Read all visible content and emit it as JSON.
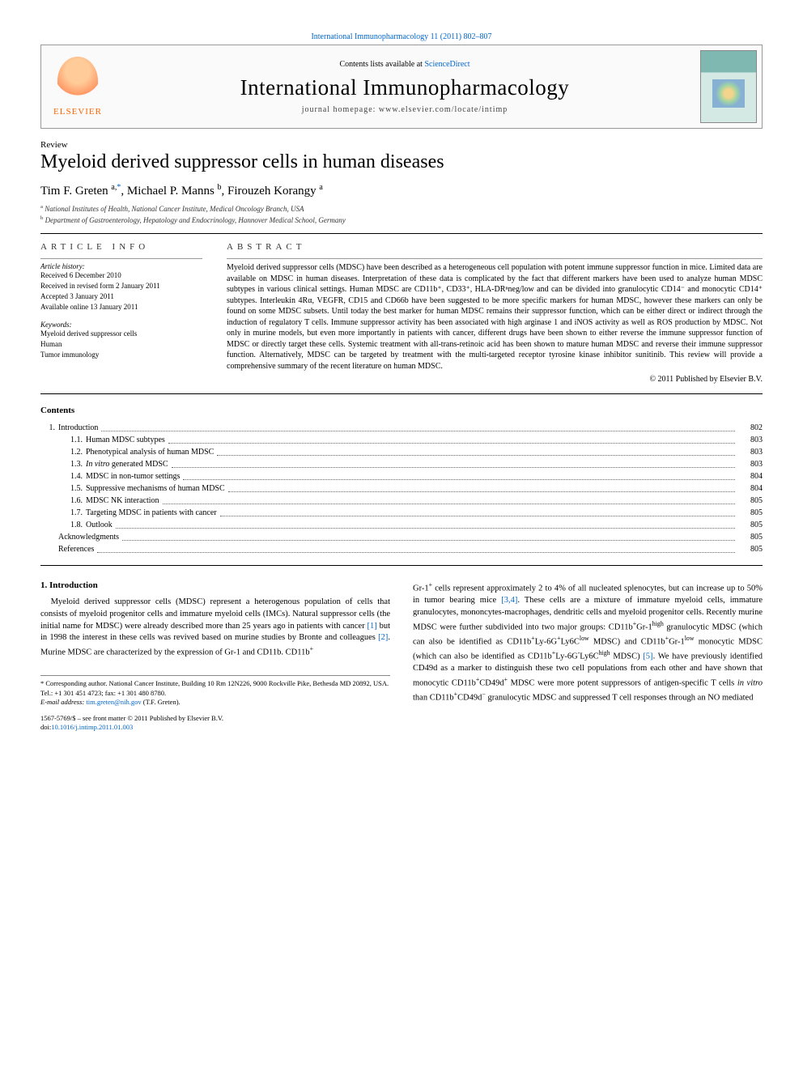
{
  "top_link": {
    "prefix": "",
    "text": "International Immunopharmacology 11 (2011) 802–807",
    "url_label": ""
  },
  "header": {
    "elsevier": "ELSEVIER",
    "contents_prefix": "Contents lists available at ",
    "contents_link": "ScienceDirect",
    "journal": "International Immunopharmacology",
    "homepage": "journal homepage: www.elsevier.com/locate/intimp"
  },
  "article": {
    "type": "Review",
    "title": "Myeloid derived suppressor cells in human diseases",
    "authors_html": "Tim F. Greten <sup>a,</sup><sup class=\"star\">*</sup>, Michael P. Manns <sup>b</sup>, Firouzeh Korangy <sup>a</sup>",
    "affiliations": [
      {
        "sup": "a",
        "text": "National Institutes of Health, National Cancer Institute, Medical Oncology Branch, USA"
      },
      {
        "sup": "b",
        "text": "Department of Gastroenterology, Hepatology and Endocrinology, Hannover Medical School, Germany"
      }
    ]
  },
  "info": {
    "heading": "ARTICLE INFO",
    "history_label": "Article history:",
    "history": [
      "Received 6 December 2010",
      "Received in revised form 2 January 2011",
      "Accepted 3 January 2011",
      "Available online 13 January 2011"
    ],
    "keywords_label": "Keywords:",
    "keywords": [
      "Myeloid derived suppressor cells",
      "Human",
      "Tumor immunology"
    ]
  },
  "abstract": {
    "heading": "ABSTRACT",
    "text": "Myeloid derived suppressor cells (MDSC) have been described as a heterogeneous cell population with potent immune suppressor function in mice. Limited data are available on MDSC in human diseases. Interpretation of these data is complicated by the fact that different markers have been used to analyze human MDSC subtypes in various clinical settings. Human MDSC are CD11b⁺, CD33⁺, HLA-DRⁿneg/low and can be divided into granulocytic CD14⁻ and monocytic CD14⁺ subtypes. Interleukin 4Rα, VEGFR, CD15 and CD66b have been suggested to be more specific markers for human MDSC, however these markers can only be found on some MDSC subsets. Until today the best marker for human MDSC remains their suppressor function, which can be either direct or indirect through the induction of regulatory T cells. Immune suppressor activity has been associated with high arginase 1 and iNOS activity as well as ROS production by MDSC. Not only in murine models, but even more importantly in patients with cancer, different drugs have been shown to either reverse the immune suppressor function of MDSC or directly target these cells. Systemic treatment with all-trans-retinoic acid has been shown to mature human MDSC and reverse their immune suppressor function. Alternatively, MDSC can be targeted by treatment with the multi-targeted receptor tyrosine kinase inhibitor sunitinib. This review will provide a comprehensive summary of the recent literature on human MDSC.",
    "copyright": "© 2011 Published by Elsevier B.V."
  },
  "contents_head": "Contents",
  "toc": [
    {
      "level": 1,
      "num": "1.",
      "title": "Introduction",
      "page": "802"
    },
    {
      "level": 2,
      "num": "1.1.",
      "title": "Human MDSC subtypes",
      "page": "803"
    },
    {
      "level": 2,
      "num": "1.2.",
      "title": "Phenotypical analysis of human MDSC",
      "page": "803"
    },
    {
      "level": 2,
      "num": "1.3.",
      "title_html": "<span class=\"toc-italic\">In vitro</span> generated MDSC",
      "page": "803"
    },
    {
      "level": 2,
      "num": "1.4.",
      "title": "MDSC in non-tumor settings",
      "page": "804"
    },
    {
      "level": 2,
      "num": "1.5.",
      "title": "Suppressive mechanisms of human MDSC",
      "page": "804"
    },
    {
      "level": 2,
      "num": "1.6.",
      "title": "MDSC NK interaction",
      "page": "805"
    },
    {
      "level": 2,
      "num": "1.7.",
      "title": "Targeting MDSC in patients with cancer",
      "page": "805"
    },
    {
      "level": 2,
      "num": "1.8.",
      "title": "Outlook",
      "page": "805"
    },
    {
      "level": 0,
      "num": "",
      "title": "Acknowledgments",
      "page": "805"
    },
    {
      "level": 0,
      "num": "",
      "title": "References",
      "page": "805"
    }
  ],
  "section1": {
    "heading": "1. Introduction",
    "p1_html": "Myeloid derived suppressor cells (MDSC) represent a heterogenous population of cells that consists of myeloid progenitor cells and immature myeloid cells (IMCs). Natural suppressor cells (the initial name for MDSC) were already described more than 25 years ago in patients with cancer <span class=\"ref\">[1]</span> but in 1998 the interest in these cells was revived based on murine studies by Bronte and colleagues <span class=\"ref\">[2]</span>. Murine MDSC are characterized by the expression of Gr-1 and CD11b. CD11b<sup>+</sup>",
    "p2_html": "Gr-1<sup>+</sup> cells represent approximately 2 to 4% of all nucleated splenocytes, but can increase up to 50% in tumor bearing mice <span class=\"ref\">[3,4]</span>. These cells are a mixture of immature myeloid cells, immature granulocytes, mononcytes-macrophages, dendritic cells and myeloid progenitor cells. Recently murine MDSC were further subdivided into two major groups: CD11b<sup>+</sup>Gr-1<sup>high</sup> granulocytic MDSC (which can also be identified as CD11b<sup>+</sup>Ly-6G<sup>+</sup>Ly6C<sup>low</sup> MDSC) and CD11b<sup>+</sup>Gr-1<sup>low</sup> monocytic MDSC (which can also be identified as CD11b<sup>+</sup>Ly-6G<sup>-</sup>Ly6C<sup>high</sup> MDSC) <span class=\"ref\">[5]</span>. We have previously identified CD49d as a marker to distinguish these two cell populations from each other and have shown that monocytic CD11b<sup>+</sup>CD49d<sup>+</sup> MDSC were more potent suppressors of antigen-specific T cells <span class=\"toc-italic\">in vitro</span> than CD11b<sup>+</sup>CD49d<sup>−</sup> granulocytic MDSC and suppressed T cell responses through an NO mediated"
  },
  "footer": {
    "corresponding": "Corresponding author. National Cancer Institute, Building 10 Rm 12N226, 9000 Rockville Pike, Bethesda MD 20892, USA. Tel.: +1 301 451 4723; fax: +1 301 480 8780.",
    "email_label": "E-mail address:",
    "email": "tim.greten@nih.gov",
    "email_suffix": "(T.F. Greten).",
    "issn": "1567-5769/$ – see front matter © 2011 Published by Elsevier B.V.",
    "doi_prefix": "doi:",
    "doi": "10.1016/j.intimp.2011.01.003"
  }
}
